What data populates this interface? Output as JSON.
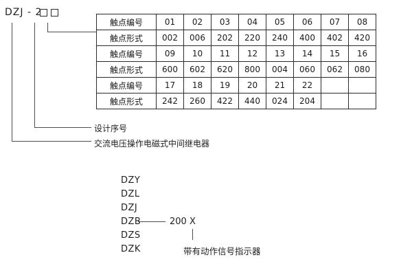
{
  "model": {
    "text": "DZJ - 2"
  },
  "table": {
    "rows": [
      {
        "label": "触点编号",
        "cells": [
          "01",
          "02",
          "03",
          "04",
          "05",
          "06",
          "07",
          "08"
        ]
      },
      {
        "label": "触点形式",
        "cells": [
          "002",
          "006",
          "202",
          "220",
          "240",
          "400",
          "402",
          "420"
        ]
      },
      {
        "label": "触点编号",
        "cells": [
          "09",
          "10",
          "11",
          "12",
          "13",
          "14",
          "15",
          "16"
        ]
      },
      {
        "label": "触点形式",
        "cells": [
          "600",
          "602",
          "620",
          "800",
          "004",
          "060",
          "062",
          "080"
        ]
      },
      {
        "label": "触点编号",
        "cells": [
          "17",
          "18",
          "19",
          "20",
          "21",
          "22",
          "",
          ""
        ]
      },
      {
        "label": "触点形式",
        "cells": [
          "242",
          "260",
          "422",
          "440",
          "024",
          "204",
          "",
          ""
        ]
      }
    ]
  },
  "callouts": {
    "design_serial": "设计序号",
    "relay_name": "交流电压操作电磁式中间继电器"
  },
  "legend": {
    "items": [
      "DZY",
      "DZL",
      "DZJ",
      "DZB",
      "DZS",
      "DZK"
    ],
    "dzb_code": "200",
    "dzb_suffix": "X",
    "indicator_note": "带有动作信号指示器"
  },
  "colors": {
    "background": "#ffffff",
    "text": "#1f1f1f",
    "table_border": "#2b2b2b",
    "line": "#4d4d4d"
  }
}
